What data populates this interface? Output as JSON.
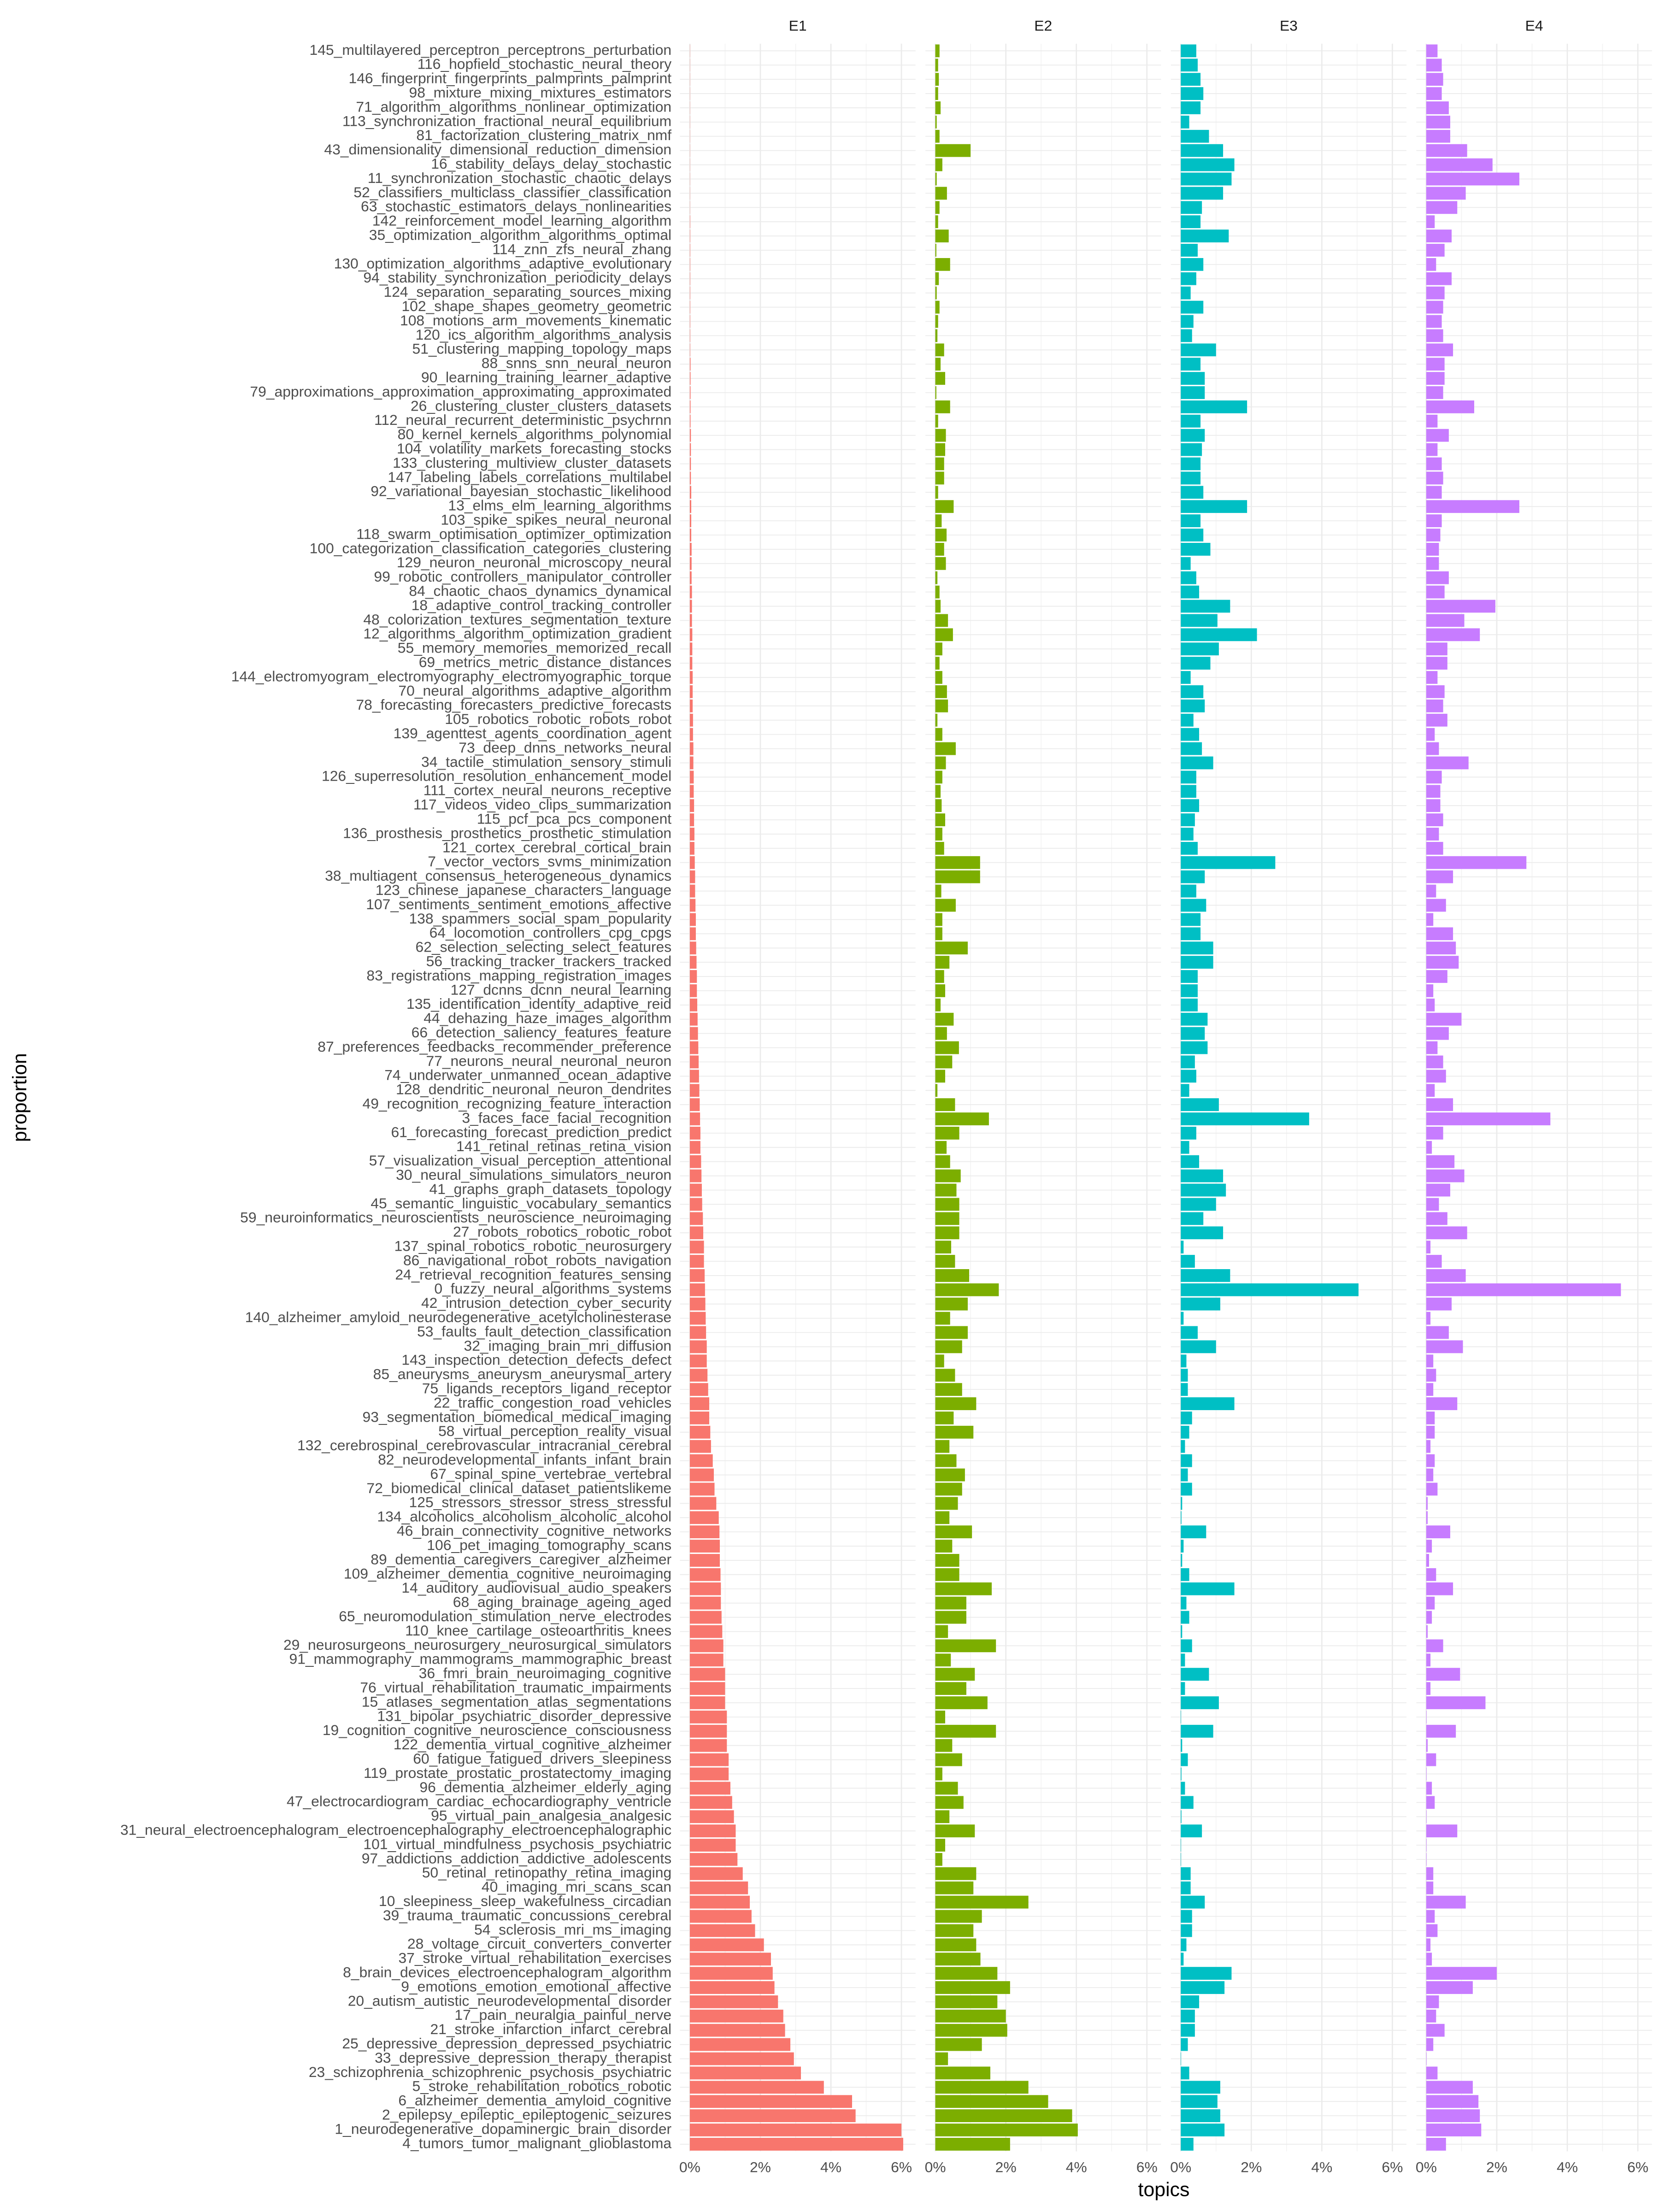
{
  "chart_data": {
    "type": "bar",
    "orientation": "horizontal",
    "facet": true,
    "x_label": "topics",
    "y_label": "proportion",
    "categories": [
      "145_multilayered_perceptron_perceptrons_perturbation",
      "116_hopfield_stochastic_neural_theory",
      "146_fingerprint_fingerprints_palmprints_palmprint",
      "98_mixture_mixing_mixtures_estimators",
      "71_algorithm_algorithms_nonlinear_optimization",
      "113_synchronization_fractional_neural_equilibrium",
      "81_factorization_clustering_matrix_nmf",
      "43_dimensionality_dimensional_reduction_dimension",
      "16_stability_delays_delay_stochastic",
      "11_synchronization_stochastic_chaotic_delays",
      "52_classifiers_multiclass_classifier_classification",
      "63_stochastic_estimators_delays_nonlinearities",
      "142_reinforcement_model_learning_algorithm",
      "35_optimization_algorithm_algorithms_optimal",
      "114_znn_zfs_neural_zhang",
      "130_optimization_algorithms_adaptive_evolutionary",
      "94_stability_synchronization_periodicity_delays",
      "124_separation_separating_sources_mixing",
      "102_shape_shapes_geometry_geometric",
      "108_motions_arm_movements_kinematic",
      "120_ics_algorithm_algorithms_analysis",
      "51_clustering_mapping_topology_maps",
      "88_snns_snn_neural_neuron",
      "90_learning_training_learner_adaptive",
      "79_approximations_approximation_approximating_approximated",
      "26_clustering_cluster_clusters_datasets",
      "112_neural_recurrent_deterministic_psychrnn",
      "80_kernel_kernels_algorithms_polynomial",
      "104_volatility_markets_forecasting_stocks",
      "133_clustering_multiview_cluster_datasets",
      "147_labeling_labels_correlations_multilabel",
      "92_variational_bayesian_stochastic_likelihood",
      "13_elms_elm_learning_algorithms",
      "103_spike_spikes_neural_neuronal",
      "118_swarm_optimisation_optimizer_optimization",
      "100_categorization_classification_categories_clustering",
      "129_neuron_neuronal_microscopy_neural",
      "99_robotic_controllers_manipulator_controller",
      "84_chaotic_chaos_dynamics_dynamical",
      "18_adaptive_control_tracking_controller",
      "48_colorization_textures_segmentation_texture",
      "12_algorithms_algorithm_optimization_gradient",
      "55_memory_memories_memorized_recall",
      "69_metrics_metric_distance_distances",
      "144_electromyogram_electromyography_electromyographic_torque",
      "70_neural_algorithms_adaptive_algorithm",
      "78_forecasting_forecasters_predictive_forecasts",
      "105_robotics_robotic_robots_robot",
      "139_agenttest_agents_coordination_agent",
      "73_deep_dnns_networks_neural",
      "34_tactile_stimulation_sensory_stimuli",
      "126_superresolution_resolution_enhancement_model",
      "111_cortex_neural_neurons_receptive",
      "117_videos_video_clips_summarization",
      "115_pcf_pca_pcs_component",
      "136_prosthesis_prosthetics_prosthetic_stimulation",
      "121_cortex_cerebral_cortical_brain",
      "7_vector_vectors_svms_minimization",
      "38_multiagent_consensus_heterogeneous_dynamics",
      "123_chinese_japanese_characters_language",
      "107_sentiments_sentiment_emotions_affective",
      "138_spammers_social_spam_popularity",
      "64_locomotion_controllers_cpg_cpgs",
      "62_selection_selecting_select_features",
      "56_tracking_tracker_trackers_tracked",
      "83_registrations_mapping_registration_images",
      "127_dcnns_dcnn_neural_learning",
      "135_identification_identity_adaptive_reid",
      "44_dehazing_haze_images_algorithm",
      "66_detection_saliency_features_feature",
      "87_preferences_feedbacks_recommender_preference",
      "77_neurons_neural_neuronal_neuron",
      "74_underwater_unmanned_ocean_adaptive",
      "128_dendritic_neuronal_neuron_dendrites",
      "49_recognition_recognizing_feature_interaction",
      "3_faces_face_facial_recognition",
      "61_forecasting_forecast_prediction_predict",
      "141_retinal_retinas_retina_vision",
      "57_visualization_visual_perception_attentional",
      "30_neural_simulations_simulators_neuron",
      "41_graphs_graph_datasets_topology",
      "45_semantic_linguistic_vocabulary_semantics",
      "59_neuroinformatics_neuroscientists_neuroscience_neuroimaging",
      "27_robots_robotics_robotic_robot",
      "137_spinal_robotics_robotic_neurosurgery",
      "86_navigational_robot_robots_navigation",
      "24_retrieval_recognition_features_sensing",
      "0_fuzzy_neural_algorithms_systems",
      "42_intrusion_detection_cyber_security",
      "140_alzheimer_amyloid_neurodegenerative_acetylcholinesterase",
      "53_faults_fault_detection_classification",
      "32_imaging_brain_mri_diffusion",
      "143_inspection_detection_defects_defect",
      "85_aneurysms_aneurysm_aneurysmal_artery",
      "75_ligands_receptors_ligand_receptor",
      "22_traffic_congestion_road_vehicles",
      "93_segmentation_biomedical_medical_imaging",
      "58_virtual_perception_reality_visual",
      "132_cerebrospinal_cerebrovascular_intracranial_cerebral",
      "82_neurodevelopmental_infants_infant_brain",
      "67_spinal_spine_vertebrae_vertebral",
      "72_biomedical_clinical_dataset_patientslikeme",
      "125_stressors_stressor_stress_stressful",
      "134_alcoholics_alcoholism_alcoholic_alcohol",
      "46_brain_connectivity_cognitive_networks",
      "106_pet_imaging_tomography_scans",
      "89_dementia_caregivers_caregiver_alzheimer",
      "109_alzheimer_dementia_cognitive_neuroimaging",
      "14_auditory_audiovisual_audio_speakers",
      "68_aging_brainage_ageing_aged",
      "65_neuromodulation_stimulation_nerve_electrodes",
      "110_knee_cartilage_osteoarthritis_knees",
      "29_neurosurgeons_neurosurgery_neurosurgical_simulators",
      "91_mammography_mammograms_mammographic_breast",
      "36_fmri_brain_neuroimaging_cognitive",
      "76_virtual_rehabilitation_traumatic_impairments",
      "15_atlases_segmentation_atlas_segmentations",
      "131_bipolar_psychiatric_disorder_depressive",
      "19_cognition_cognitive_neuroscience_consciousness",
      "122_dementia_virtual_cognitive_alzheimer",
      "60_fatigue_fatigued_drivers_sleepiness",
      "119_prostate_prostatic_prostatectomy_imaging",
      "96_dementia_alzheimer_elderly_aging",
      "47_electrocardiogram_cardiac_echocardiography_ventricle",
      "95_virtual_pain_analgesia_analgesic",
      "31_neural_electroencephalogram_electroencephalography_electroencephalographic",
      "101_virtual_mindfulness_psychosis_psychiatric",
      "97_addictions_addiction_addictive_adolescents",
      "50_retinal_retinopathy_retina_imaging",
      "40_imaging_mri_scans_scan",
      "10_sleepiness_sleep_wakefulness_circadian",
      "39_trauma_traumatic_concussions_cerebral",
      "54_sclerosis_mri_ms_imaging",
      "28_voltage_circuit_converters_converter",
      "37_stroke_virtual_rehabilitation_exercises",
      "8_brain_devices_electroencephalogram_algorithm",
      "9_emotions_emotion_emotional_affective",
      "20_autism_autistic_neurodevelopmental_disorder",
      "17_pain_neuralgia_painful_nerve",
      "21_stroke_infarction_infarct_cerebral",
      "25_depressive_depression_depressed_psychiatric",
      "33_depressive_depression_therapy_therapist",
      "23_schizophrenia_schizophrenic_psychosis_psychiatric",
      "5_stroke_rehabilitation_robotics_robotic",
      "6_alzheimer_dementia_amyloid_cognitive",
      "2_epilepsy_epileptic_epileptogenic_seizures",
      "1_neurodegenerative_dopaminergic_brain_disorder",
      "4_tumors_tumor_malignant_glioblastoma"
    ],
    "series": [
      {
        "name": "E1",
        "color": "#F8766D",
        "values": [
          0.005,
          0.005,
          0.005,
          0.005,
          0.005,
          0.005,
          0.005,
          0.005,
          0.005,
          0.005,
          0.005,
          0.005,
          0.01,
          0.01,
          0.01,
          0.01,
          0.01,
          0.01,
          0.01,
          0.01,
          0.01,
          0.01,
          0.02,
          0.02,
          0.02,
          0.02,
          0.02,
          0.03,
          0.03,
          0.03,
          0.03,
          0.04,
          0.04,
          0.04,
          0.04,
          0.05,
          0.05,
          0.05,
          0.06,
          0.06,
          0.06,
          0.07,
          0.07,
          0.07,
          0.08,
          0.08,
          0.08,
          0.09,
          0.09,
          0.1,
          0.1,
          0.11,
          0.11,
          0.12,
          0.12,
          0.13,
          0.13,
          0.14,
          0.15,
          0.15,
          0.16,
          0.17,
          0.17,
          0.18,
          0.19,
          0.2,
          0.2,
          0.21,
          0.22,
          0.23,
          0.24,
          0.25,
          0.26,
          0.27,
          0.28,
          0.29,
          0.3,
          0.3,
          0.32,
          0.33,
          0.34,
          0.35,
          0.37,
          0.38,
          0.4,
          0.4,
          0.42,
          0.43,
          0.44,
          0.45,
          0.46,
          0.48,
          0.48,
          0.5,
          0.52,
          0.55,
          0.55,
          0.58,
          0.6,
          0.65,
          0.68,
          0.7,
          0.75,
          0.82,
          0.84,
          0.85,
          0.85,
          0.87,
          0.88,
          0.88,
          0.9,
          0.92,
          0.95,
          0.95,
          1.0,
          1.0,
          1.0,
          1.05,
          1.05,
          1.05,
          1.1,
          1.1,
          1.15,
          1.2,
          1.25,
          1.3,
          1.3,
          1.35,
          1.5,
          1.65,
          1.7,
          1.75,
          1.85,
          2.1,
          2.3,
          2.35,
          2.4,
          2.5,
          2.65,
          2.7,
          2.85,
          2.95,
          3.15,
          3.8,
          4.6,
          4.7,
          6.0,
          6.05
        ]
      },
      {
        "name": "E2",
        "color": "#7CAE00",
        "values": [
          0.12,
          0.08,
          0.1,
          0.08,
          0.15,
          0.04,
          0.12,
          1.0,
          0.2,
          0.04,
          0.33,
          0.12,
          0.08,
          0.38,
          0.03,
          0.42,
          0.1,
          0.04,
          0.12,
          0.08,
          0.06,
          0.25,
          0.15,
          0.28,
          0.03,
          0.42,
          0.08,
          0.3,
          0.28,
          0.25,
          0.25,
          0.08,
          0.52,
          0.18,
          0.32,
          0.25,
          0.3,
          0.06,
          0.12,
          0.15,
          0.36,
          0.5,
          0.2,
          0.12,
          0.2,
          0.33,
          0.36,
          0.06,
          0.2,
          0.58,
          0.3,
          0.2,
          0.15,
          0.18,
          0.28,
          0.2,
          0.25,
          1.27,
          1.27,
          0.17,
          0.58,
          0.2,
          0.2,
          0.92,
          0.4,
          0.25,
          0.28,
          0.15,
          0.52,
          0.33,
          0.67,
          0.48,
          0.28,
          0.06,
          0.56,
          1.52,
          0.68,
          0.32,
          0.42,
          0.72,
          0.6,
          0.68,
          0.68,
          0.68,
          0.45,
          0.56,
          0.96,
          1.8,
          0.92,
          0.42,
          0.92,
          0.76,
          0.25,
          0.56,
          0.76,
          1.16,
          0.52,
          1.08,
          0.4,
          0.6,
          0.84,
          0.76,
          0.64,
          0.4,
          1.04,
          0.48,
          0.68,
          0.68,
          1.6,
          0.88,
          0.88,
          0.36,
          1.72,
          0.44,
          1.12,
          0.88,
          1.48,
          0.28,
          1.72,
          0.48,
          0.76,
          0.2,
          0.64,
          0.8,
          0.4,
          1.12,
          0.28,
          0.2,
          1.16,
          1.08,
          2.64,
          1.32,
          1.08,
          1.16,
          1.28,
          1.76,
          2.12,
          1.76,
          2.0,
          2.04,
          1.32,
          0.36,
          1.56,
          2.64,
          3.2,
          3.88,
          4.04,
          2.12
        ]
      },
      {
        "name": "E3",
        "color": "#00BFC4",
        "values": [
          0.44,
          0.48,
          0.56,
          0.64,
          0.56,
          0.24,
          0.8,
          1.2,
          1.52,
          1.44,
          1.2,
          0.6,
          0.56,
          1.36,
          0.48,
          0.64,
          0.44,
          0.28,
          0.64,
          0.36,
          0.32,
          1.0,
          0.56,
          0.68,
          0.68,
          1.88,
          0.56,
          0.68,
          0.6,
          0.56,
          0.56,
          0.64,
          1.88,
          0.56,
          0.64,
          0.84,
          0.28,
          0.44,
          0.52,
          1.4,
          1.04,
          2.16,
          1.08,
          0.84,
          0.28,
          0.64,
          0.68,
          0.36,
          0.52,
          0.6,
          0.92,
          0.44,
          0.44,
          0.52,
          0.4,
          0.36,
          0.48,
          2.68,
          0.68,
          0.44,
          0.72,
          0.56,
          0.56,
          0.92,
          0.92,
          0.48,
          0.48,
          0.48,
          0.76,
          0.68,
          0.76,
          0.4,
          0.44,
          0.24,
          1.08,
          3.64,
          0.44,
          0.24,
          0.52,
          1.2,
          1.28,
          1.0,
          0.64,
          1.2,
          0.08,
          0.4,
          1.4,
          5.04,
          1.12,
          0.08,
          0.48,
          1.0,
          0.16,
          0.2,
          0.2,
          1.52,
          0.32,
          0.24,
          0.12,
          0.32,
          0.2,
          0.32,
          0.04,
          0.02,
          0.72,
          0.08,
          0.04,
          0.24,
          1.52,
          0.16,
          0.24,
          0.04,
          0.32,
          0.12,
          0.8,
          0.12,
          1.08,
          0.01,
          0.92,
          0.04,
          0.2,
          0.02,
          0.12,
          0.36,
          0.02,
          0.6,
          0.01,
          0.01,
          0.28,
          0.28,
          0.68,
          0.32,
          0.32,
          0.16,
          0.08,
          1.44,
          1.24,
          0.52,
          0.4,
          0.4,
          0.2,
          0.01,
          0.24,
          1.12,
          1.04,
          1.12,
          1.24,
          0.36
        ]
      },
      {
        "name": "E4",
        "color": "#C77CFF",
        "values": [
          0.32,
          0.44,
          0.48,
          0.44,
          0.64,
          0.68,
          0.68,
          1.16,
          1.88,
          2.64,
          1.12,
          0.88,
          0.24,
          0.72,
          0.52,
          0.28,
          0.72,
          0.52,
          0.48,
          0.44,
          0.48,
          0.76,
          0.52,
          0.52,
          0.48,
          1.36,
          0.32,
          0.64,
          0.32,
          0.44,
          0.48,
          0.44,
          2.64,
          0.44,
          0.4,
          0.36,
          0.36,
          0.64,
          0.52,
          1.96,
          1.08,
          1.52,
          0.6,
          0.6,
          0.32,
          0.52,
          0.48,
          0.6,
          0.24,
          0.36,
          1.2,
          0.44,
          0.4,
          0.4,
          0.48,
          0.36,
          0.48,
          2.84,
          0.76,
          0.28,
          0.56,
          0.2,
          0.76,
          0.84,
          0.92,
          0.6,
          0.2,
          0.24,
          1.0,
          0.64,
          0.32,
          0.48,
          0.56,
          0.24,
          0.76,
          3.52,
          0.48,
          0.16,
          0.8,
          1.08,
          0.68,
          0.36,
          0.6,
          1.16,
          0.12,
          0.44,
          1.12,
          5.52,
          0.72,
          0.12,
          0.64,
          1.04,
          0.2,
          0.28,
          0.2,
          0.88,
          0.24,
          0.24,
          0.12,
          0.24,
          0.2,
          0.32,
          0.04,
          0.04,
          0.68,
          0.16,
          0.08,
          0.28,
          0.76,
          0.24,
          0.16,
          0.04,
          0.48,
          0.12,
          0.96,
          0.12,
          1.68,
          0.01,
          0.84,
          0.04,
          0.28,
          0.01,
          0.16,
          0.24,
          0.01,
          0.88,
          0.01,
          0.01,
          0.2,
          0.2,
          1.12,
          0.24,
          0.32,
          0.12,
          0.16,
          2.0,
          1.32,
          0.36,
          0.28,
          0.52,
          0.2,
          0.01,
          0.32,
          1.32,
          1.48,
          1.52,
          1.56,
          0.56
        ]
      }
    ],
    "xlim": [
      -0.28,
      6.4
    ],
    "xticks": [
      {
        "value": 0,
        "label": "0%"
      },
      {
        "value": 2,
        "label": "2%"
      },
      {
        "value": 4,
        "label": "4%"
      },
      {
        "value": 6,
        "label": "6%"
      }
    ],
    "xminor": [
      1,
      3,
      5
    ],
    "grid": true
  }
}
